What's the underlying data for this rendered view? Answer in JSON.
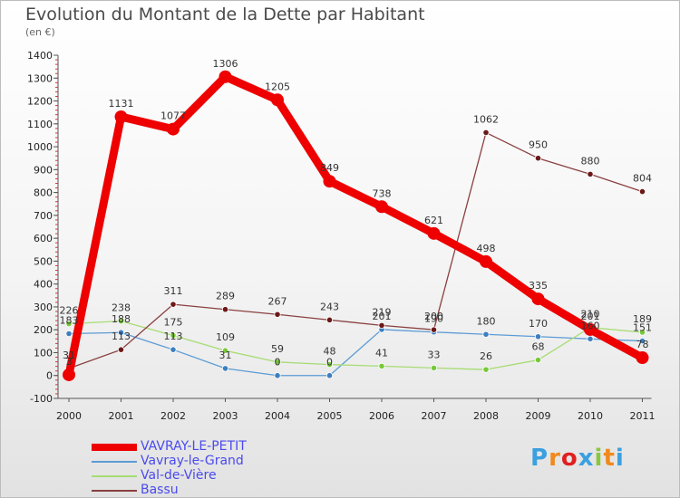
{
  "title": "Evolution du Montant de la Dette par Habitant",
  "subtitle": "(en €)",
  "logo": {
    "text": "Proxiti",
    "colors": [
      "#3aa0e0",
      "#f08a1c",
      "#e02020",
      "#3aa0e0",
      "#8cc63f",
      "#f08a1c",
      "#3aa0e0"
    ]
  },
  "chart_data": {
    "type": "line",
    "title": "Evolution du Montant de la Dette par Habitant",
    "subtitle": "(en €)",
    "categories": [
      "2000",
      "2001",
      "2002",
      "2003",
      "2004",
      "2005",
      "2006",
      "2007",
      "2008",
      "2009",
      "2010",
      "2011"
    ],
    "yticks": [
      -100,
      0,
      100,
      200,
      300,
      400,
      500,
      600,
      700,
      800,
      900,
      1000,
      1100,
      1200,
      1300,
      1400
    ],
    "ylim": [
      -100,
      1400
    ],
    "grid": false,
    "legend_position": "bottom-left",
    "series": [
      {
        "name": "VAVRAY-LE-PETIT",
        "color": "#ee0000",
        "bold": true,
        "values": [
          3,
          1131,
          1077,
          1306,
          1205,
          849,
          738,
          621,
          498,
          335,
          201,
          78
        ],
        "labels": [
          "3",
          "1131",
          "1077",
          "1306",
          "1205",
          "849",
          "738",
          "621",
          "498",
          "335",
          "201",
          "78"
        ]
      },
      {
        "name": "Vavray-le-Grand",
        "color": "#5b9bd5",
        "marker": "#3c7fc0",
        "bold": false,
        "values": [
          183,
          188,
          113,
          31,
          0,
          0,
          201,
          190,
          180,
          170,
          160,
          151
        ],
        "labels": [
          "183",
          "188",
          "113",
          "31",
          "0",
          "0",
          "201",
          "190",
          "180",
          "170",
          "160",
          "151"
        ]
      },
      {
        "name": "Val-de-Vière",
        "color": "#a7dc74",
        "marker": "#78c83a",
        "bold": false,
        "values": [
          226,
          238,
          175,
          109,
          59,
          48,
          41,
          33,
          26,
          68,
          210,
          189
        ],
        "labels": [
          "226",
          "238",
          "175",
          "109",
          "59",
          "48",
          "41",
          "33",
          "26",
          "68",
          "210",
          "189"
        ]
      },
      {
        "name": "Bassu",
        "color": "#8a4040",
        "marker": "#6b1818",
        "bold": false,
        "values": [
          31,
          113,
          311,
          289,
          267,
          243,
          219,
          200,
          1062,
          950,
          880,
          804
        ],
        "labels": [
          "31",
          "113",
          "311",
          "289",
          "267",
          "243",
          "219",
          "200",
          "1062",
          "950",
          "880",
          "804"
        ]
      }
    ]
  }
}
